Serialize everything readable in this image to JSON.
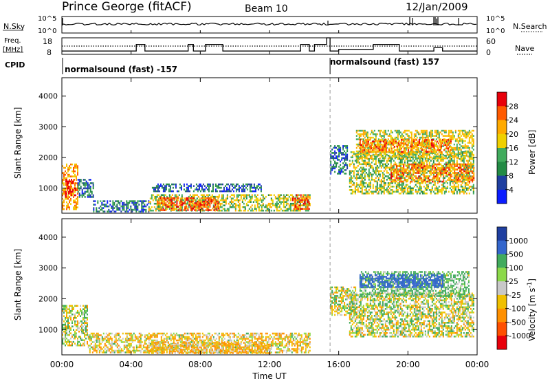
{
  "header": {
    "station": "Prince George (fitACF)",
    "beam": "Beam 10",
    "date": "12/Jan/2009"
  },
  "noise_panel": {
    "left_label": "N.Sky",
    "right_label": "N.Search",
    "left_ticks": [
      "10^5",
      "10^0"
    ],
    "right_ticks": [
      "10^5",
      "10^0"
    ]
  },
  "freq_panel": {
    "left_label_1": "Freq.",
    "left_label_2": "[MHz]",
    "right_label": "Nave",
    "left_ticks": [
      "18",
      "8"
    ],
    "right_ticks": [
      "60",
      "0"
    ]
  },
  "cpid_panel": {
    "label": "CPID",
    "entries": [
      {
        "text": "normalsound (fast) -157",
        "start_hour": 0
      },
      {
        "text": "normalsound (fast) 157",
        "start_hour": 15.5
      }
    ]
  },
  "power_panel": {
    "ylabel": "Slant Range [km]",
    "yticks": [
      "4000",
      "3000",
      "2000",
      "1000"
    ],
    "colorbar_label": "Power [dB]",
    "colorbar_ticks": [
      "28",
      "24",
      "20",
      "16",
      "12",
      "8",
      "4"
    ],
    "colors": [
      "#e8000b",
      "#ff5a00",
      "#ffaa00",
      "#f0d000",
      "#41ab5d",
      "#238b45",
      "#1f3fa0",
      "#0b1dff"
    ]
  },
  "velocity_panel": {
    "ylabel": "Slant Range [km]",
    "yticks": [
      "4000",
      "3000",
      "2000",
      "1000"
    ],
    "colorbar_label": "Velocity [m s",
    "colorbar_label_sup": "-1",
    "colorbar_label_end": "]",
    "colorbar_ticks": [
      "1000",
      "500",
      "100",
      "25",
      "-25",
      "-100",
      "-500",
      "-1000"
    ],
    "colors": [
      "#1f3fa0",
      "#3366cc",
      "#41ab5d",
      "#8cd94a",
      "#c8c8c8",
      "#f0c000",
      "#ff9000",
      "#ff5000",
      "#e8000b"
    ]
  },
  "x_axis": {
    "ticks": [
      "00:00",
      "04:00",
      "08:00",
      "12:00",
      "16:00",
      "20:00",
      "00:00"
    ],
    "label": "Time UT"
  },
  "chart_data": {
    "type": "heatmap",
    "x_range_hours": [
      0,
      24
    ],
    "y_range_km": [
      180,
      4600
    ],
    "cpid_change_hour": 15.5,
    "power_regions": [
      {
        "t0": 0.0,
        "t1": 0.9,
        "r0": 300,
        "r1": 1800,
        "db": 20
      },
      {
        "t0": 0.2,
        "t1": 0.8,
        "r0": 700,
        "r1": 1300,
        "db": 28
      },
      {
        "t0": 0.9,
        "t1": 1.8,
        "r0": 700,
        "r1": 1300,
        "db": 6
      },
      {
        "t0": 1.8,
        "t1": 5.0,
        "r0": 250,
        "r1": 600,
        "db": 6
      },
      {
        "t0": 5.0,
        "t1": 14.3,
        "r0": 250,
        "r1": 800,
        "db": 14
      },
      {
        "t0": 5.5,
        "t1": 9.0,
        "r0": 300,
        "r1": 700,
        "db": 24
      },
      {
        "t0": 5.2,
        "t1": 11.5,
        "r0": 900,
        "r1": 1150,
        "db": 5
      },
      {
        "t0": 13.3,
        "t1": 14.3,
        "r0": 300,
        "r1": 800,
        "db": 24
      },
      {
        "t0": 15.5,
        "t1": 16.5,
        "r0": 1500,
        "r1": 2400,
        "db": 6
      },
      {
        "t0": 16.6,
        "t1": 23.8,
        "r0": 800,
        "r1": 2200,
        "db": 14
      },
      {
        "t0": 17.0,
        "t1": 23.8,
        "r0": 2000,
        "r1": 2900,
        "db": 16
      },
      {
        "t0": 19.0,
        "t1": 23.8,
        "r0": 1200,
        "r1": 1800,
        "db": 22
      },
      {
        "t0": 17.2,
        "t1": 22.5,
        "r0": 2200,
        "r1": 2600,
        "db": 22
      }
    ],
    "velocity_regions": [
      {
        "t0": 0.0,
        "t1": 1.5,
        "r0": 500,
        "r1": 1800,
        "v": 0
      },
      {
        "t0": 1.5,
        "t1": 14.3,
        "r0": 250,
        "r1": 900,
        "v": -50
      },
      {
        "t0": 5.0,
        "t1": 12.0,
        "r0": 250,
        "r1": 600,
        "v": -100
      },
      {
        "t0": 15.5,
        "t1": 17.0,
        "r0": 1500,
        "r1": 2400,
        "v": 0
      },
      {
        "t0": 16.6,
        "t1": 23.8,
        "r0": 800,
        "r1": 2200,
        "v": 0
      },
      {
        "t0": 17.2,
        "t1": 23.5,
        "r0": 2100,
        "r1": 2900,
        "v": 100
      },
      {
        "t0": 17.2,
        "t1": 22.0,
        "r0": 2400,
        "r1": 2800,
        "v": 500
      }
    ],
    "freq_steps": [
      {
        "t0": 0.0,
        "t1": 4.3,
        "mhz": 10
      },
      {
        "t0": 4.3,
        "t1": 4.8,
        "mhz": 14
      },
      {
        "t0": 4.8,
        "t1": 7.3,
        "mhz": 10
      },
      {
        "t0": 7.3,
        "t1": 7.6,
        "mhz": 14
      },
      {
        "t0": 7.6,
        "t1": 8.3,
        "mhz": 10
      },
      {
        "t0": 8.3,
        "t1": 9.3,
        "mhz": 14
      },
      {
        "t0": 9.3,
        "t1": 13.8,
        "mhz": 10
      },
      {
        "t0": 13.8,
        "t1": 14.3,
        "mhz": 14
      },
      {
        "t0": 14.3,
        "t1": 14.6,
        "mhz": 10
      },
      {
        "t0": 14.6,
        "t1": 15.3,
        "mhz": 14
      },
      {
        "t0": 15.3,
        "t1": 15.5,
        "mhz": 18
      },
      {
        "t0": 15.5,
        "t1": 16.0,
        "mhz": 10
      },
      {
        "t0": 16.0,
        "t1": 18.0,
        "mhz": 11
      },
      {
        "t0": 18.0,
        "t1": 19.5,
        "mhz": 14
      },
      {
        "t0": 19.5,
        "t1": 21.5,
        "mhz": 10
      },
      {
        "t0": 21.5,
        "t1": 22.0,
        "mhz": 12
      },
      {
        "t0": 22.0,
        "t1": 24.0,
        "mhz": 10
      }
    ],
    "nave_level": 30
  }
}
